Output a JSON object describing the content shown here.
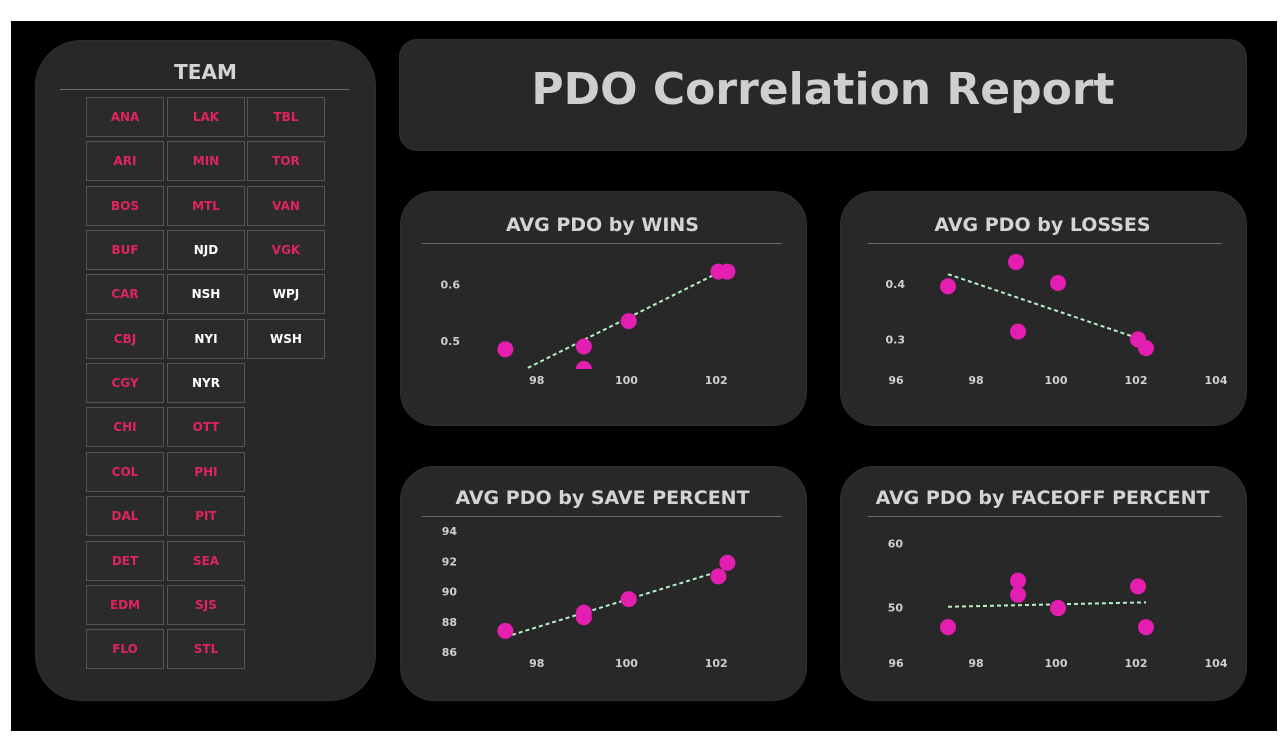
{
  "page_title": "PDO Correlation Report",
  "team_slicer": {
    "title": "TEAM",
    "items": [
      {
        "label": "ANA",
        "selected": true
      },
      {
        "label": "ARI",
        "selected": true
      },
      {
        "label": "BOS",
        "selected": true
      },
      {
        "label": "BUF",
        "selected": true
      },
      {
        "label": "CAR",
        "selected": true
      },
      {
        "label": "CBJ",
        "selected": true
      },
      {
        "label": "CGY",
        "selected": true
      },
      {
        "label": "CHI",
        "selected": true
      },
      {
        "label": "COL",
        "selected": true
      },
      {
        "label": "DAL",
        "selected": true
      },
      {
        "label": "DET",
        "selected": true
      },
      {
        "label": "EDM",
        "selected": true
      },
      {
        "label": "FLO",
        "selected": true
      },
      {
        "label": "LAK",
        "selected": true
      },
      {
        "label": "MIN",
        "selected": true
      },
      {
        "label": "MTL",
        "selected": true
      },
      {
        "label": "NJD",
        "selected": false
      },
      {
        "label": "NSH",
        "selected": false
      },
      {
        "label": "NYI",
        "selected": false
      },
      {
        "label": "NYR",
        "selected": false
      },
      {
        "label": "OTT",
        "selected": true
      },
      {
        "label": "PHI",
        "selected": true
      },
      {
        "label": "PIT",
        "selected": true
      },
      {
        "label": "SEA",
        "selected": true
      },
      {
        "label": "SJS",
        "selected": true
      },
      {
        "label": "STL",
        "selected": true
      },
      {
        "label": "TBL",
        "selected": true
      },
      {
        "label": "TOR",
        "selected": true
      },
      {
        "label": "VAN",
        "selected": true
      },
      {
        "label": "VGK",
        "selected": true
      },
      {
        "label": "WPJ",
        "selected": false
      },
      {
        "label": "WSH",
        "selected": false
      }
    ]
  },
  "colors": {
    "point": "#e31eb0",
    "trend": "#b6f0c8",
    "axis_text": "#d0d0d0"
  },
  "chart_data": [
    {
      "type": "scatter",
      "title": "AVG PDO by WINS",
      "xlabel": "",
      "ylabel": "",
      "xlim": [
        96.4,
        103.2
      ],
      "ylim": [
        0.45,
        0.64
      ],
      "xticks": [
        98,
        100,
        102
      ],
      "yticks": [
        0.5,
        0.6
      ],
      "ytick_labels": [
        "0.5",
        "0.6"
      ],
      "points": [
        {
          "x": 97.3,
          "y": 0.485
        },
        {
          "x": 99.05,
          "y": 0.49
        },
        {
          "x": 99.05,
          "y": 0.45
        },
        {
          "x": 100.05,
          "y": 0.535
        },
        {
          "x": 102.05,
          "y": 0.623
        },
        {
          "x": 102.25,
          "y": 0.623
        }
      ],
      "trend": [
        {
          "x": 97.8,
          "y": 0.452
        },
        {
          "x": 102.15,
          "y": 0.625
        }
      ]
    },
    {
      "type": "scatter",
      "title": "AVG PDO by LOSSES",
      "xlabel": "",
      "ylabel": "",
      "xlim": [
        95.6,
        104.6
      ],
      "ylim": [
        0.268,
        0.44
      ],
      "xticks": [
        96,
        98,
        100,
        102,
        104
      ],
      "yticks": [
        0.3,
        0.4
      ],
      "ytick_labels": [
        "0.3",
        "0.4"
      ],
      "points": [
        {
          "x": 97.3,
          "y": 0.396
        },
        {
          "x": 99.0,
          "y": 0.44
        },
        {
          "x": 99.05,
          "y": 0.314
        },
        {
          "x": 100.05,
          "y": 0.402
        },
        {
          "x": 102.05,
          "y": 0.3
        },
        {
          "x": 102.25,
          "y": 0.284
        }
      ],
      "trend": [
        {
          "x": 97.3,
          "y": 0.418
        },
        {
          "x": 102.25,
          "y": 0.297
        }
      ]
    },
    {
      "type": "scatter",
      "title": "AVG PDO by SAVE PERCENT",
      "xlabel": "",
      "ylabel": "",
      "xlim": [
        96.4,
        103.2
      ],
      "ylim": [
        86,
        94
      ],
      "xticks": [
        98,
        100,
        102
      ],
      "yticks": [
        86,
        88,
        90,
        92,
        94
      ],
      "ytick_labels": [
        "86",
        "88",
        "90",
        "92",
        "94"
      ],
      "points": [
        {
          "x": 97.3,
          "y": 87.4
        },
        {
          "x": 99.05,
          "y": 88.6
        },
        {
          "x": 99.05,
          "y": 88.3
        },
        {
          "x": 100.05,
          "y": 89.5
        },
        {
          "x": 102.05,
          "y": 91.0
        },
        {
          "x": 102.25,
          "y": 91.9
        }
      ],
      "trend": [
        {
          "x": 97.3,
          "y": 87.0
        },
        {
          "x": 102.25,
          "y": 91.5
        }
      ]
    },
    {
      "type": "scatter",
      "title": "AVG PDO by FACEOFF PERCENT",
      "xlabel": "",
      "ylabel": "",
      "xlim": [
        95.6,
        104.6
      ],
      "ylim": [
        43,
        62
      ],
      "xticks": [
        96,
        98,
        100,
        102,
        104
      ],
      "yticks": [
        50,
        60
      ],
      "ytick_labels": [
        "50",
        "60"
      ],
      "points": [
        {
          "x": 97.3,
          "y": 46.9
        },
        {
          "x": 99.05,
          "y": 54.2
        },
        {
          "x": 99.05,
          "y": 52.0
        },
        {
          "x": 100.05,
          "y": 49.9
        },
        {
          "x": 102.05,
          "y": 53.3
        },
        {
          "x": 102.25,
          "y": 46.9
        }
      ],
      "trend": [
        {
          "x": 97.3,
          "y": 50.1
        },
        {
          "x": 102.25,
          "y": 50.8
        }
      ]
    }
  ]
}
